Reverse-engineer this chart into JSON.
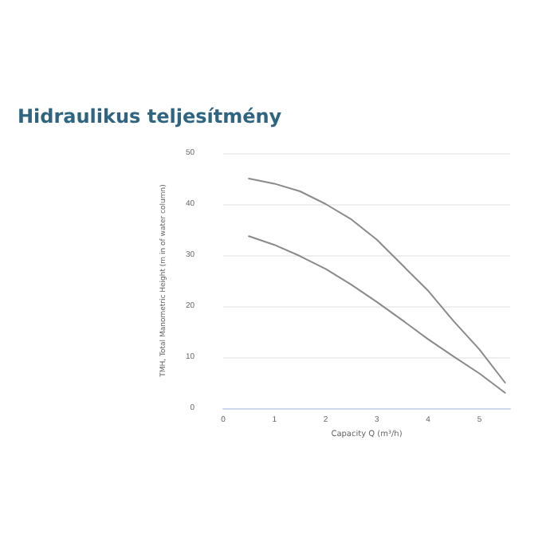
{
  "chart_data": {
    "type": "line",
    "title": "Hidraulikus teljesítmény",
    "xlabel": "Capacity Q (m³/h)",
    "ylabel": "TMH, Total Manometric Height (m in of water column)",
    "series": [
      {
        "color": "#8a8a8a",
        "x": [
          0.5,
          1,
          1.5,
          2,
          2.5,
          3,
          3.5,
          4,
          4.5,
          5,
          5.5
        ],
        "values": [
          45,
          44,
          42.5,
          40,
          37,
          33,
          28,
          23,
          17,
          11.5,
          5
        ]
      },
      {
        "color": "#8a8a8a",
        "x": [
          0.5,
          1,
          1.5,
          2,
          2.5,
          3,
          3.5,
          4,
          4.5,
          5,
          5.5
        ],
        "values": [
          33.7,
          32,
          29.8,
          27.3,
          24.2,
          20.8,
          17.2,
          13.5,
          10.1,
          6.8,
          3
        ]
      }
    ],
    "xlim": [
      0,
      5.6
    ],
    "xticks": [
      0,
      1,
      2,
      3,
      4,
      5
    ],
    "ylim": [
      0,
      50
    ],
    "yticks": [
      0,
      10,
      20,
      30,
      40,
      50
    ],
    "grid": "y",
    "marker": "none",
    "line_style": "solid"
  }
}
